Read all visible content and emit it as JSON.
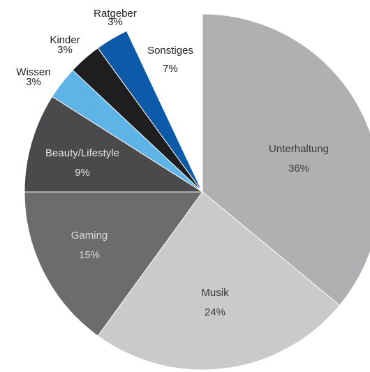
{
  "chart_data": {
    "type": "pie",
    "title": "",
    "start_angle_deg": 0,
    "direction": "clockwise",
    "slices": [
      {
        "label": "Unterhaltung",
        "value": 36,
        "display": "36%",
        "color": "#b0b0b2",
        "text_color": "#3a3a3a"
      },
      {
        "label": "Musik",
        "value": 24,
        "display": "24%",
        "color": "#cacacc",
        "text_color": "#3a3a3a"
      },
      {
        "label": "Gaming",
        "value": 15,
        "display": "15%",
        "color": "#6c6c6e",
        "text_color": "#d8d8d8"
      },
      {
        "label": "Beauty/Lifestyle",
        "value": 9,
        "display": "9%",
        "color": "#4a4a4c",
        "text_color": "#e6e6e6"
      },
      {
        "label": "Wissen",
        "value": 3,
        "display": "3%",
        "color": "#5eb4e6",
        "text_color": "#222222"
      },
      {
        "label": "Kinder",
        "value": 3,
        "display": "3%",
        "color": "#1e1e20",
        "text_color": "#222222"
      },
      {
        "label": "Ratgeber",
        "value": 3,
        "display": "3%",
        "color": "#0d5aa8",
        "text_color": "#222222"
      },
      {
        "label": "Sonstiges",
        "value": 7,
        "display": "7%",
        "color": "#ffffff",
        "text_color": "#222222"
      }
    ]
  }
}
